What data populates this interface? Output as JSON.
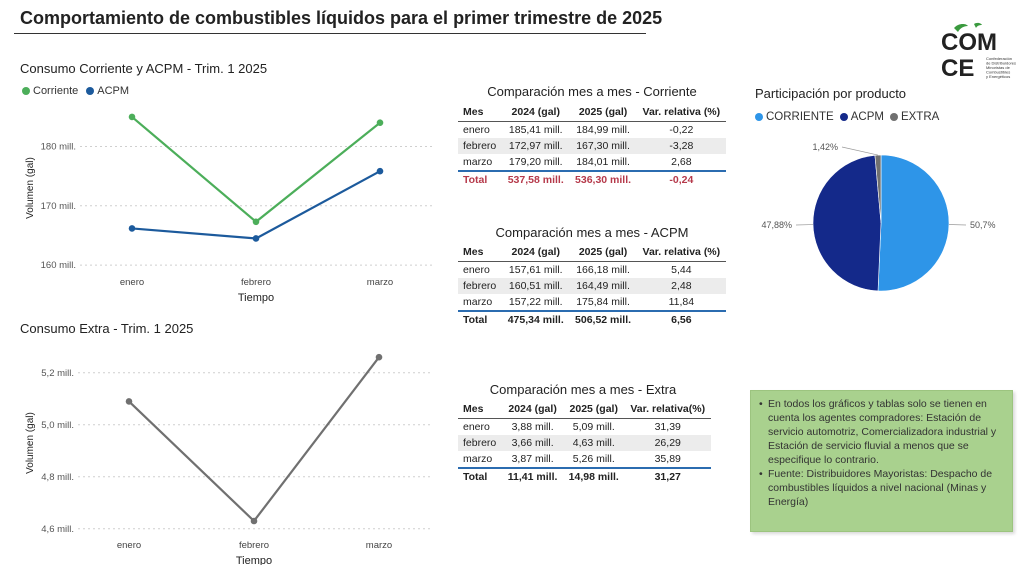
{
  "page_title": "Comportamiento de combustibles líquidos para el primer trimestre de 2025",
  "logo": {
    "line1": "COM",
    "line2": "CE",
    "subtitle_lines": [
      "Confederación",
      "de Distribuidores",
      "Minoristas de",
      "Combustibles",
      "y Energéticos"
    ]
  },
  "chart_data": [
    {
      "type": "line",
      "title": "Consumo Corriente y ACPM - Trim. 1 2025",
      "categories": [
        "enero",
        "febrero",
        "marzo"
      ],
      "series": [
        {
          "name": "Corriente",
          "values": [
            184.99,
            167.3,
            184.01
          ],
          "color": "#4cae5a"
        },
        {
          "name": "ACPM",
          "values": [
            166.18,
            164.49,
            175.84
          ],
          "color": "#1c5a9c"
        }
      ],
      "yticks": [
        160,
        170,
        180
      ],
      "ytick_labels": [
        "160 mill.",
        "170 mill.",
        "180 mill."
      ],
      "ylim": [
        159,
        187
      ],
      "xlabel": "Tiempo",
      "ylabel": "Volumen (gal)",
      "grid": true,
      "legend": "top-left"
    },
    {
      "type": "line",
      "title": "Consumo Extra - Trim. 1 2025",
      "categories": [
        "enero",
        "febrero",
        "marzo"
      ],
      "series": [
        {
          "name": "Extra",
          "values": [
            5.09,
            4.63,
            5.26
          ],
          "color": "#707070"
        }
      ],
      "yticks": [
        4.6,
        4.8,
        5.0,
        5.2
      ],
      "ytick_labels": [
        "4,6 mill.",
        "4,8 mill.",
        "5,0 mill.",
        "5,2 mill."
      ],
      "ylim": [
        4.58,
        5.28
      ],
      "xlabel": "Tiempo",
      "ylabel": "Volumen (gal)",
      "grid": true
    },
    {
      "type": "pie",
      "title": "Participación por producto",
      "slices": [
        {
          "name": "CORRIENTE",
          "value": 50.7,
          "label": "50,7%",
          "color": "#2e95e8"
        },
        {
          "name": "ACPM",
          "value": 47.88,
          "label": "47,88%",
          "color": "#14298a"
        },
        {
          "name": "EXTRA",
          "value": 1.42,
          "label": "1,42%",
          "color": "#707070"
        }
      ],
      "legend": "top"
    }
  ],
  "tables": {
    "corriente": {
      "title": "Comparación mes a mes - Corriente",
      "headers": [
        "Mes",
        "2024 (gal)",
        "2025 (gal)",
        "Var. relativa (%)"
      ],
      "rows": [
        [
          "enero",
          "185,41 mill.",
          "184,99 mill.",
          "-0,22"
        ],
        [
          "febrero",
          "172,97 mill.",
          "167,30 mill.",
          "-3,28"
        ],
        [
          "marzo",
          "179,20 mill.",
          "184,01 mill.",
          "2,68"
        ]
      ],
      "total": [
        "Total",
        "537,58 mill.",
        "536,30 mill.",
        "-0,24"
      ]
    },
    "acpm": {
      "title": "Comparación mes a mes - ACPM",
      "headers": [
        "Mes",
        "2024 (gal)",
        "2025 (gal)",
        "Var. relativa (%)"
      ],
      "rows": [
        [
          "enero",
          "157,61 mill.",
          "166,18 mill.",
          "5,44"
        ],
        [
          "febrero",
          "160,51 mill.",
          "164,49 mill.",
          "2,48"
        ],
        [
          "marzo",
          "157,22 mill.",
          "175,84 mill.",
          "11,84"
        ]
      ],
      "total": [
        "Total",
        "475,34 mill.",
        "506,52 mill.",
        "6,56"
      ]
    },
    "extra": {
      "title": "Comparación mes a mes - Extra",
      "headers": [
        "Mes",
        "2024 (gal)",
        "2025 (gal)",
        "Var. relativa(%)"
      ],
      "rows": [
        [
          "enero",
          "3,88 mill.",
          "5,09 mill.",
          "31,39"
        ],
        [
          "febrero",
          "3,66 mill.",
          "4,63 mill.",
          "26,29"
        ],
        [
          "marzo",
          "3,87 mill.",
          "5,26 mill.",
          "35,89"
        ]
      ],
      "total": [
        "Total",
        "11,41 mill.",
        "14,98 mill.",
        "31,27"
      ]
    }
  },
  "notes": [
    "En todos los gráficos y tablas solo se tienen en cuenta los agentes compradores: Estación de servicio automotriz, Comercializadora industrial y Estación de servicio fluvial a menos que se especifique lo contrario.",
    "Fuente: Distribuidores Mayoristas: Despacho de combustibles líquidos a nivel nacional (Minas y Energía)"
  ]
}
